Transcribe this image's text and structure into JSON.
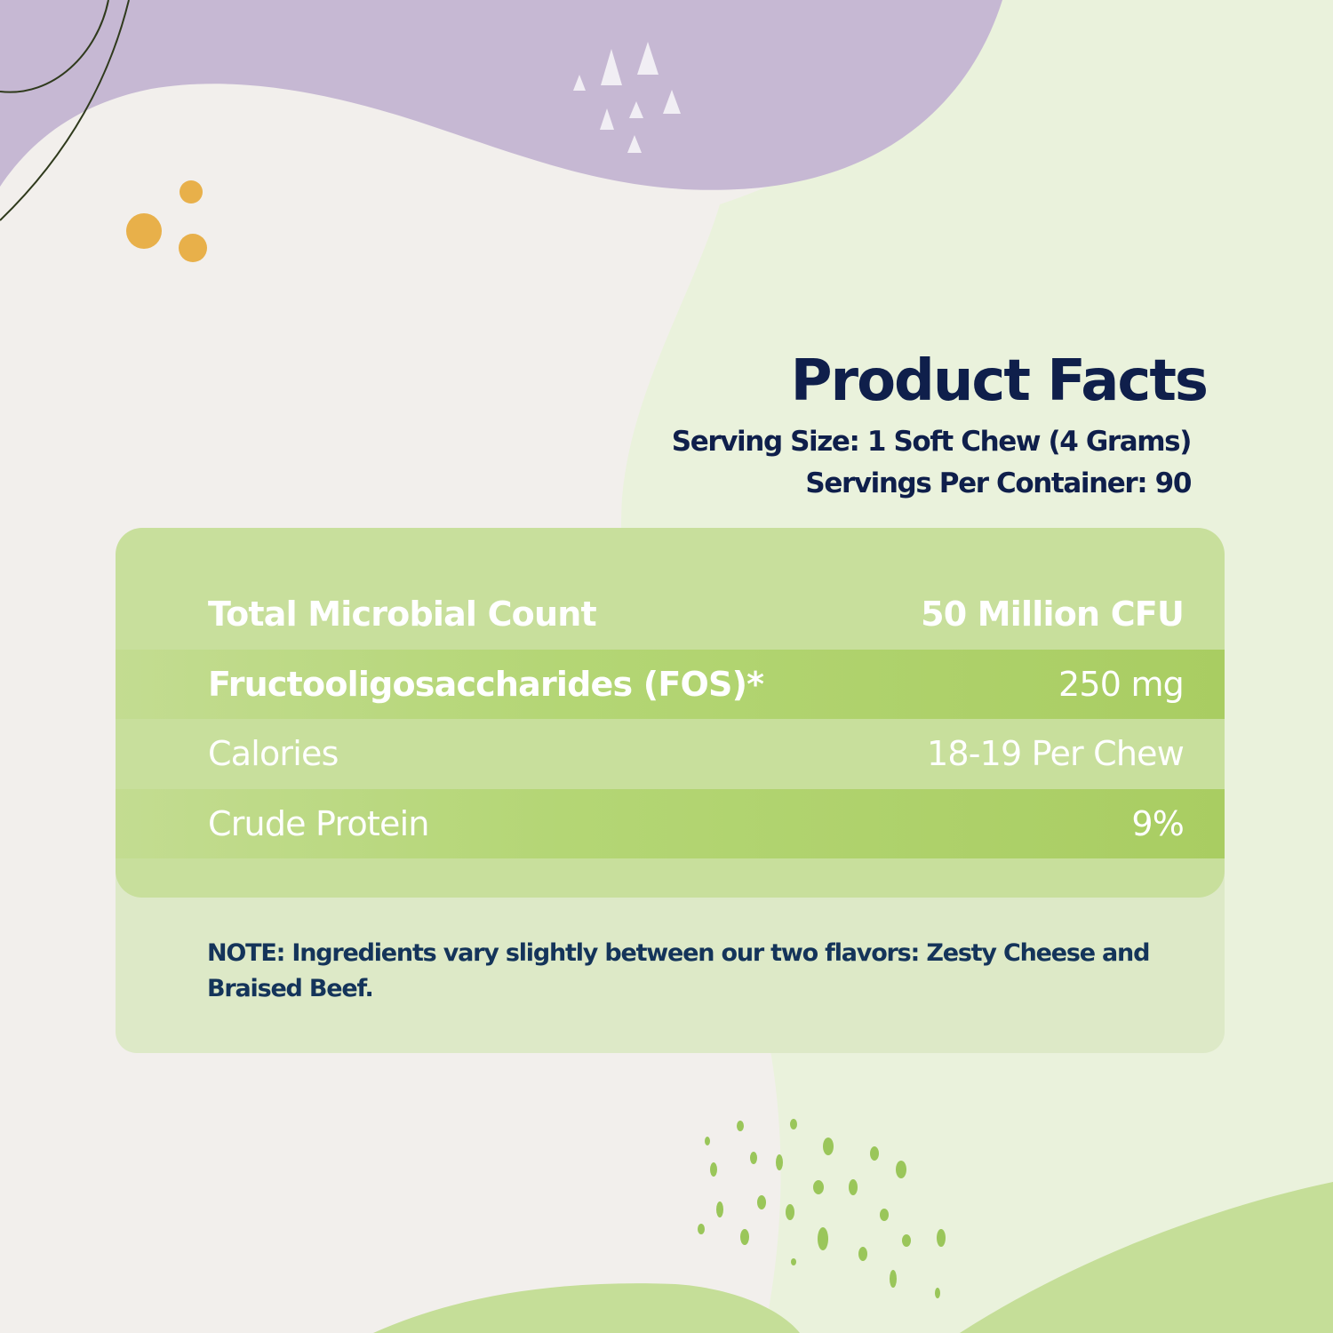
{
  "colors": {
    "background": "#f2efec",
    "lavender_shape": "#c6b8d3",
    "green_shape": "#eaf2dc",
    "panel_green": "#c8df9c",
    "row_green": "#a9cd62",
    "note_panel": "#dde9c7",
    "heading_navy": "#0f1f4b",
    "accent_yellow": "#e8b04a",
    "speckle_green": "#9ac65a"
  },
  "heading": {
    "title": "Product Facts",
    "serving_size": "Serving Size: 1 Soft Chew (4 Grams)",
    "servings_per_container": "Servings Per Container: 90"
  },
  "facts": [
    {
      "label": "Total Microbial Count",
      "value": "50 Million CFU"
    },
    {
      "label": "Fructooligosaccharides (FOS)*",
      "value": "250 mg"
    },
    {
      "label": "Calories",
      "value": "18-19 Per Chew"
    },
    {
      "label": "Crude Protein",
      "value": "9%"
    }
  ],
  "note": "NOTE: Ingredients vary slightly between our two flavors: Zesty Cheese and Braised Beef."
}
